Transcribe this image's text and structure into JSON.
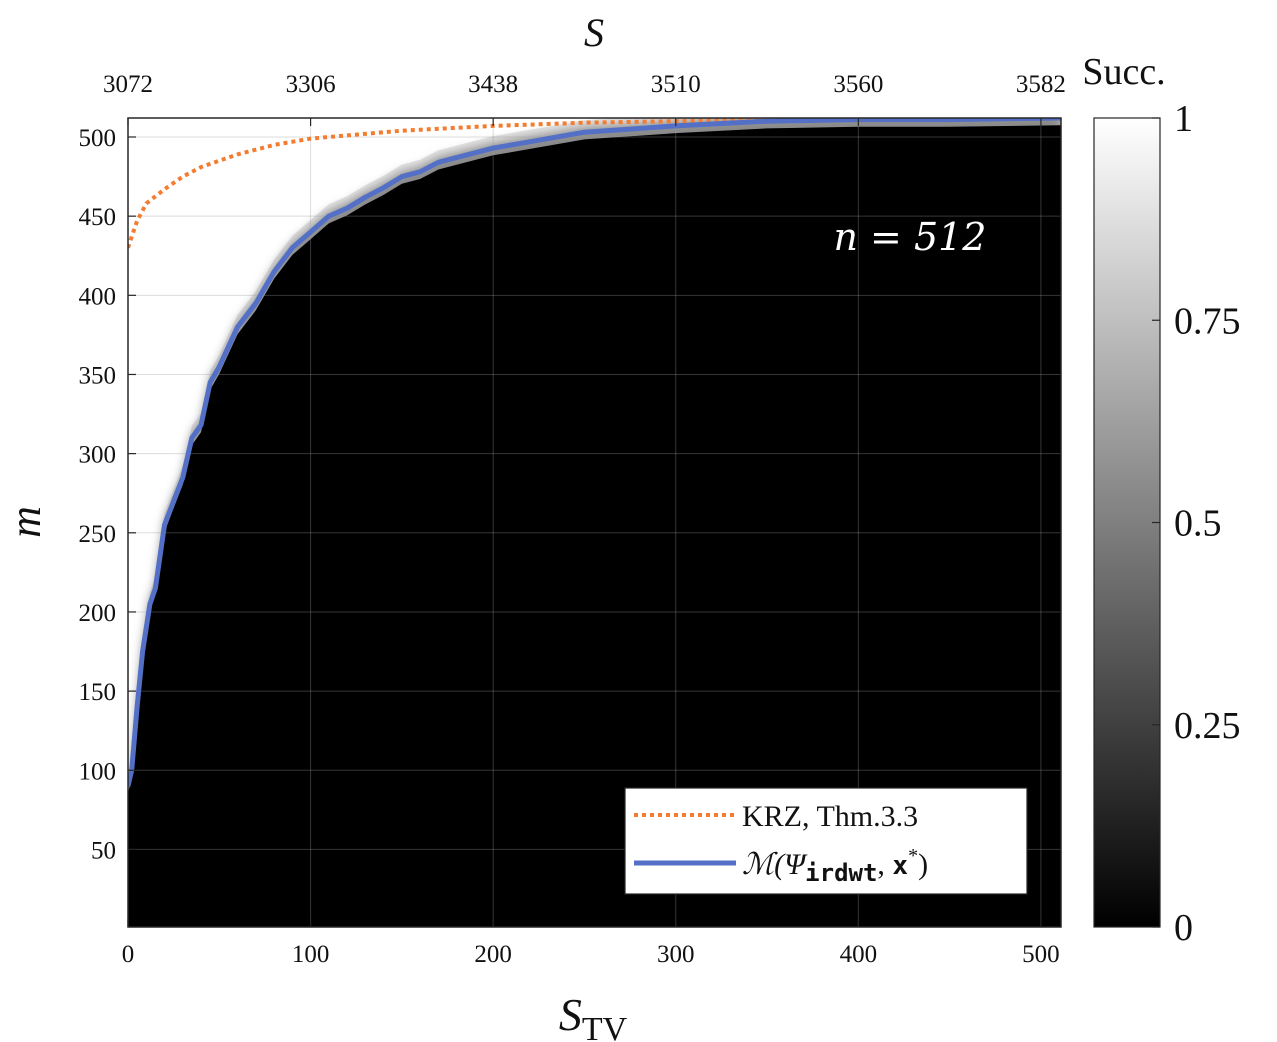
{
  "chart_data": {
    "type": "heatmap",
    "xlabel": "S",
    "xlabel_subscript": "TV",
    "ylabel": "m",
    "top_axis_label": "S",
    "xlim": [
      0,
      511
    ],
    "ylim": [
      1,
      512
    ],
    "x_ticks": [
      0,
      100,
      200,
      300,
      400,
      500
    ],
    "y_ticks": [
      50,
      100,
      150,
      200,
      250,
      300,
      350,
      400,
      450,
      500
    ],
    "top_ticks_at_x": [
      0,
      100,
      200,
      300,
      400,
      500
    ],
    "top_tick_labels": [
      "3072",
      "3306",
      "3438",
      "3510",
      "3560",
      "3582"
    ],
    "annotation": "n = 512",
    "colorbar": {
      "title": "Succ.",
      "range": [
        0,
        1
      ],
      "ticks": [
        0,
        0.25,
        0.5,
        0.75,
        1
      ],
      "tick_labels": [
        "0",
        "0.25",
        "0.5",
        "0.75",
        "1"
      ],
      "colormap": "gray"
    },
    "grid": true,
    "legend_placement": "bottom-right",
    "series": [
      {
        "name": "KRZ, Thm.3.3",
        "style": "dotted",
        "color": "#f47c30",
        "x": [
          0,
          2,
          5,
          10,
          20,
          30,
          40,
          50,
          60,
          80,
          100,
          120,
          150,
          200,
          250,
          300,
          350,
          400,
          450,
          511
        ],
        "y": [
          430,
          437,
          447,
          458,
          467,
          475,
          481,
          485,
          489,
          495,
          499,
          501,
          504,
          507,
          509,
          510,
          511,
          511,
          511,
          512
        ]
      },
      {
        "name": "M(Ψ_irdwt, x*)",
        "legend_math": "ℳ(Ψ",
        "legend_sub": "irdwt",
        "legend_rest": ", ",
        "legend_bold": "x",
        "legend_sup": "*",
        "legend_close": ")",
        "style": "solid",
        "color": "#5470c6",
        "x": [
          0,
          2,
          5,
          8,
          12,
          15,
          20,
          25,
          30,
          35,
          40,
          45,
          50,
          60,
          70,
          80,
          90,
          100,
          110,
          120,
          130,
          140,
          150,
          160,
          170,
          180,
          200,
          225,
          250,
          275,
          300,
          350,
          400,
          450,
          511
        ],
        "y": [
          90,
          100,
          140,
          175,
          205,
          215,
          255,
          270,
          285,
          310,
          318,
          345,
          355,
          380,
          395,
          415,
          430,
          440,
          450,
          455,
          462,
          468,
          475,
          478,
          484,
          487,
          493,
          498,
          503,
          505,
          507,
          510,
          511,
          511,
          512
        ]
      }
    ],
    "heatmap_transition_width": 12
  }
}
